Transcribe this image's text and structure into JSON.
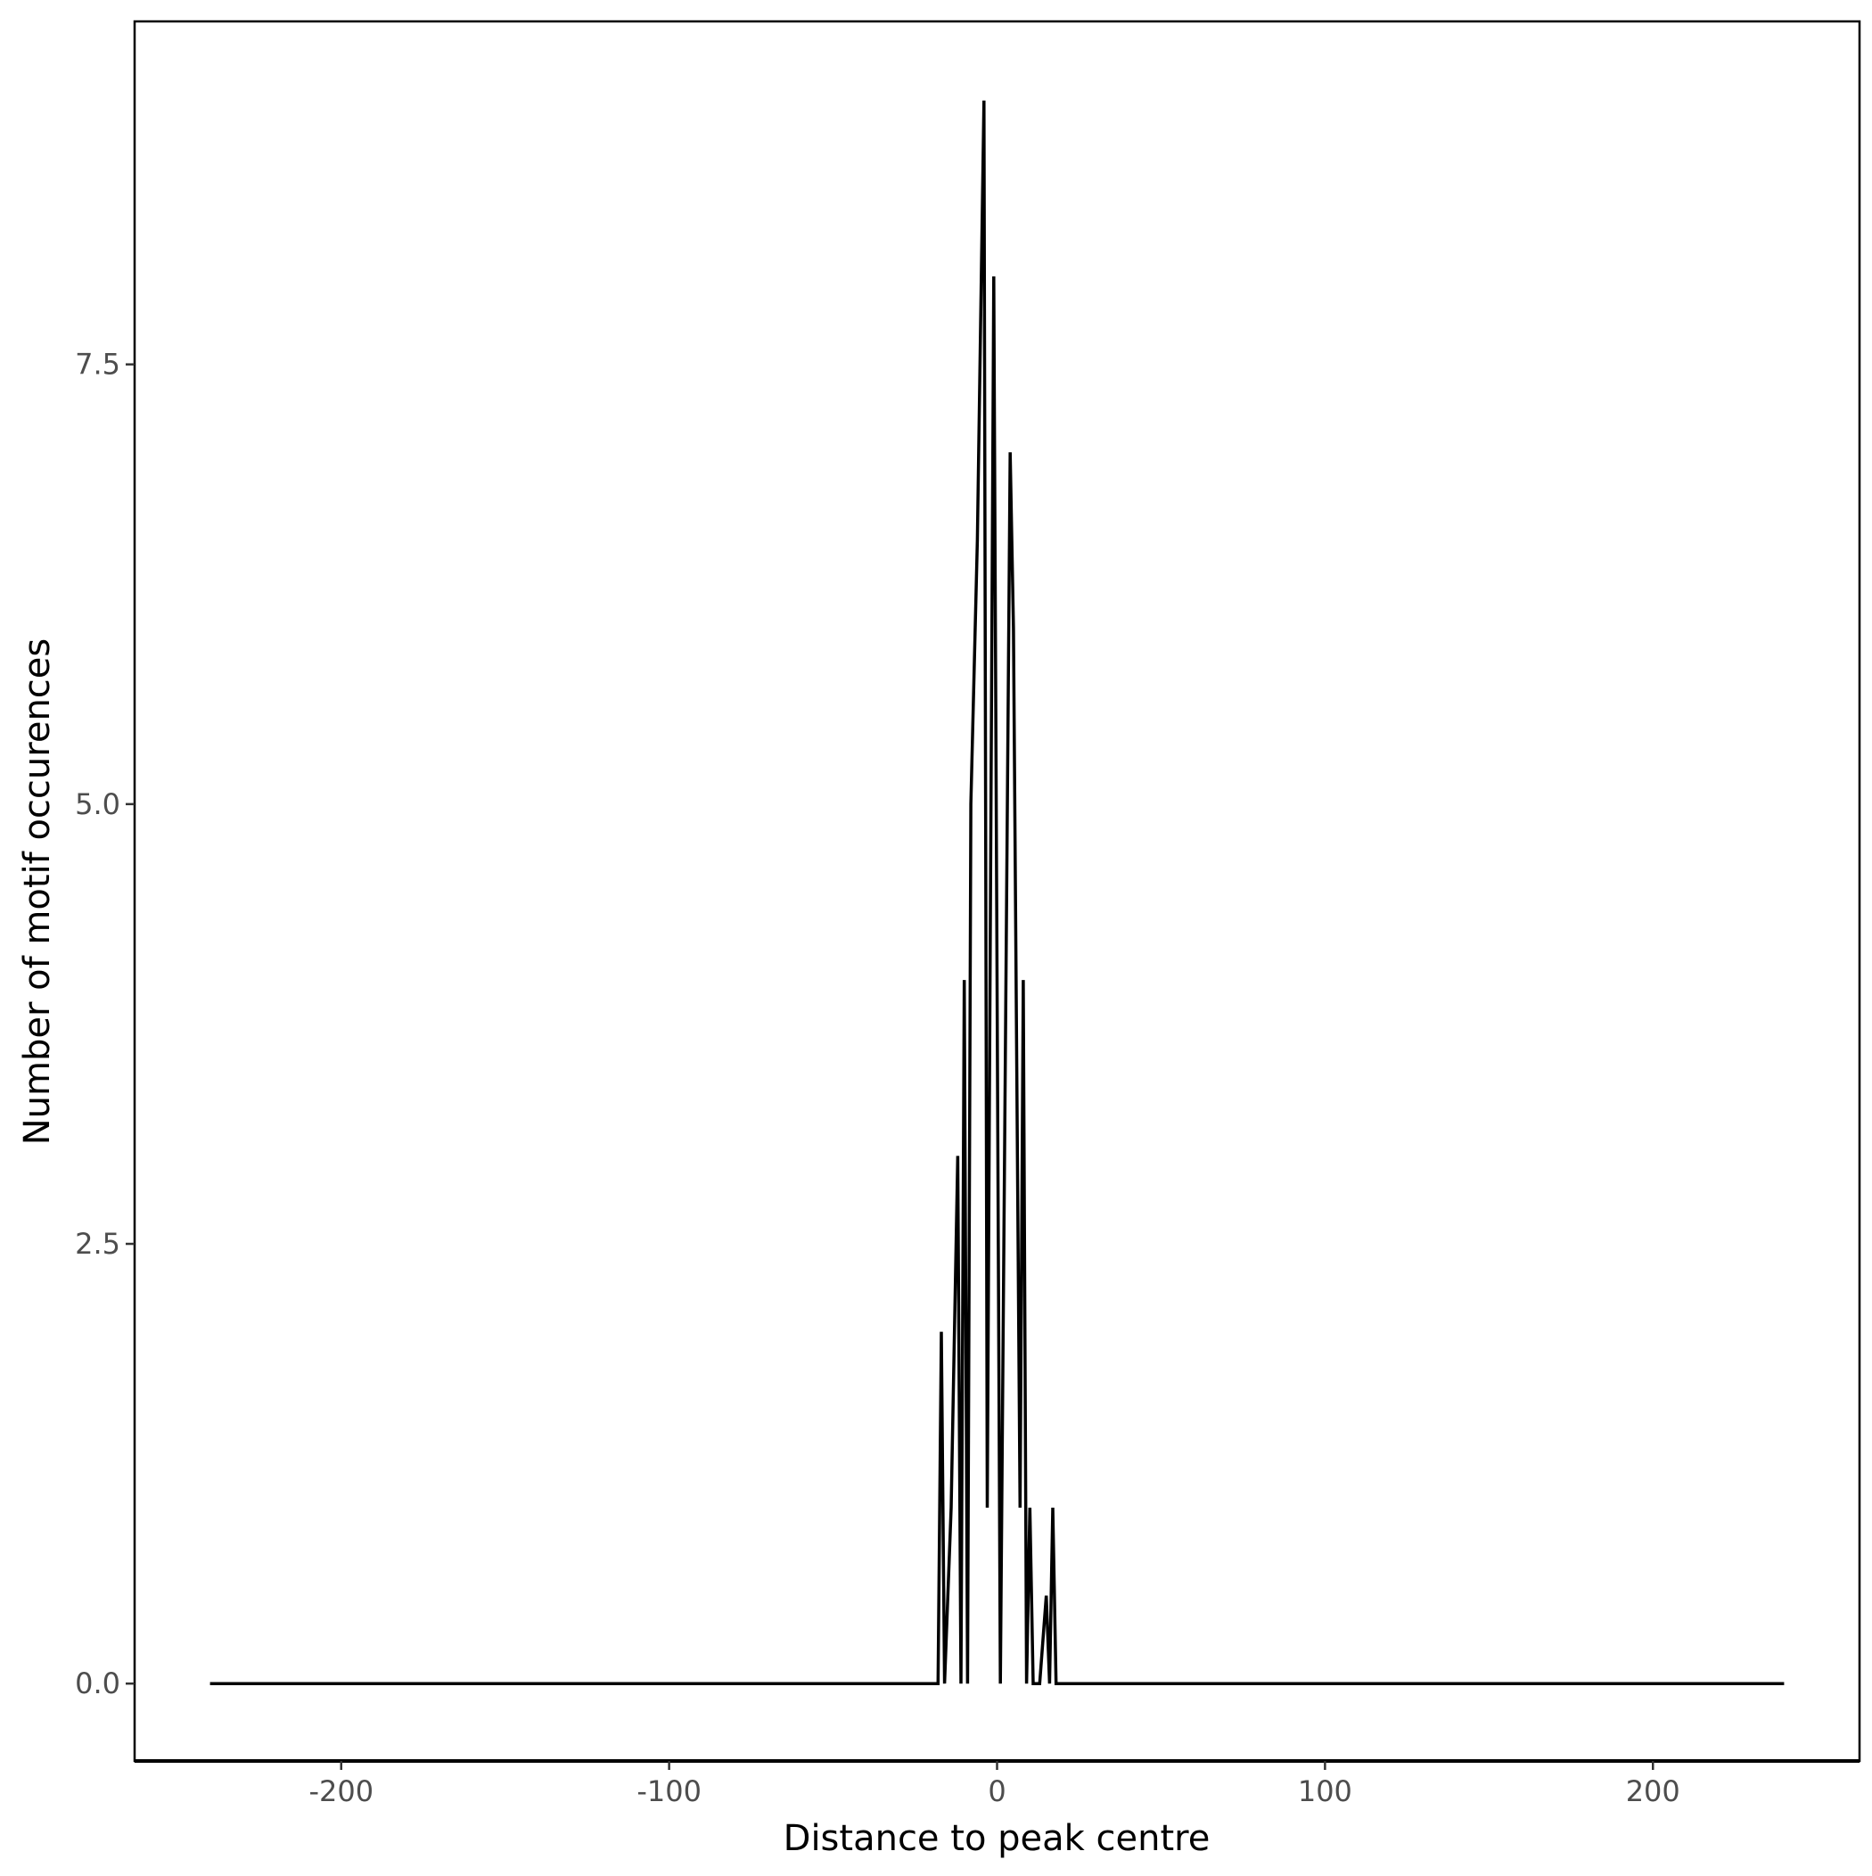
{
  "chart_data": {
    "type": "line",
    "title": "",
    "xlabel": "Distance to peak centre",
    "ylabel": "Number of motif occurences",
    "xlim": [
      -263,
      263
    ],
    "ylim": [
      -0.44,
      9.45
    ],
    "x_ticks": [
      -200,
      -100,
      0,
      100,
      200
    ],
    "x_tick_labels": [
      "-200",
      "-100",
      "0",
      "100",
      "200"
    ],
    "y_ticks": [
      0,
      2.5,
      5,
      7.5
    ],
    "y_tick_labels": [
      "0.0",
      "2.5",
      "5.0",
      "7.5"
    ],
    "grid": false,
    "line_color": "#000000",
    "series": [
      {
        "x": [
          -240,
          -18,
          -17,
          -16,
          -14,
          -12,
          -11,
          -10,
          -9,
          -8,
          -6,
          -4,
          -3,
          -1,
          1,
          4,
          5,
          7,
          8,
          9,
          10,
          11,
          13,
          15,
          16,
          17,
          18,
          240
        ],
        "y": [
          0,
          0,
          2,
          0,
          1,
          3,
          0,
          4,
          0,
          5,
          6.5,
          9,
          1,
          8,
          0,
          7,
          6,
          1,
          4,
          0,
          1,
          0,
          0,
          0.5,
          0,
          1,
          0,
          0
        ]
      }
    ]
  }
}
